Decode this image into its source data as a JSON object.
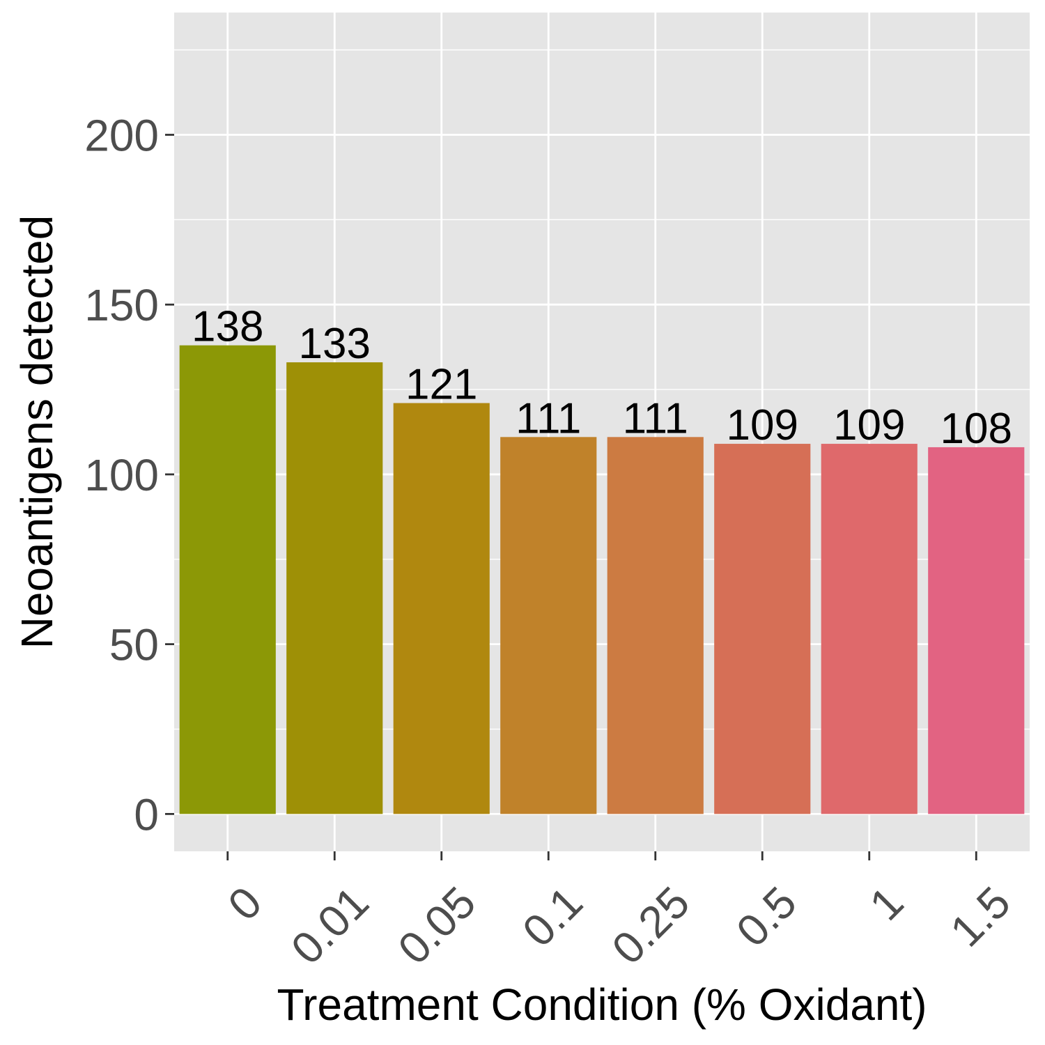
{
  "chart_data": {
    "type": "bar",
    "categories": [
      "0",
      "0.01",
      "0.05",
      "0.1",
      "0.25",
      "0.5",
      "1",
      "1.5"
    ],
    "values": [
      138,
      133,
      121,
      111,
      111,
      109,
      109,
      108
    ],
    "data_labels": [
      "138",
      "133",
      "121",
      "111",
      "111",
      "109",
      "109",
      "108"
    ],
    "colors": [
      "#8c9806",
      "#9e9006",
      "#b0880f",
      "#c0822a",
      "#cc7b42",
      "#d66f56",
      "#df696b",
      "#e26382"
    ],
    "xlabel": "Treatment Condition (% Oxidant)",
    "ylabel": "Neoantigens detected",
    "yticks": [
      0,
      50,
      100,
      150,
      200
    ],
    "ytick_labels": [
      "0",
      "50",
      "100",
      "150",
      "200"
    ],
    "ylim": [
      -11,
      236
    ],
    "grid": true,
    "panel_background": "#e5e5e5",
    "gridline_color": "#ffffff"
  }
}
